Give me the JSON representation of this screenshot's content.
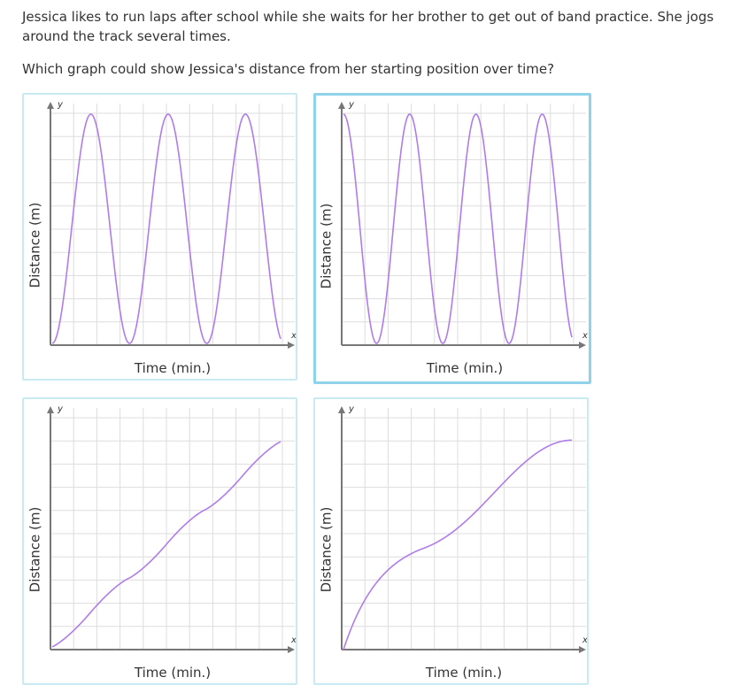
{
  "question": {
    "text": "Jessica likes to run laps after school while she waits for her brother to get out of band practice. She jogs around the track several times.",
    "prompt": "Which graph could show Jessica's distance from her starting position over time?"
  },
  "choices": [
    {
      "id": "a",
      "selected": false,
      "curve": "oscillating-start-zero",
      "chart_data": {
        "type": "line",
        "xlabel": "Time (min.)",
        "ylabel": "Distance (m)",
        "x_axis_letter": "x",
        "y_axis_letter": "y"
      }
    },
    {
      "id": "b",
      "selected": true,
      "curve": "oscillating-start-high",
      "chart_data": {
        "type": "line",
        "xlabel": "Time (min.)",
        "ylabel": "Distance (m)",
        "x_axis_letter": "x",
        "y_axis_letter": "y"
      }
    },
    {
      "id": "c",
      "selected": false,
      "curve": "stepped-increasing",
      "chart_data": {
        "type": "line",
        "xlabel": "Time (min.)",
        "ylabel": "Distance (m)",
        "x_axis_letter": "x",
        "y_axis_letter": "y"
      }
    },
    {
      "id": "d",
      "selected": false,
      "curve": "concave-increasing",
      "chart_data": {
        "type": "line",
        "xlabel": "Time (min.)",
        "ylabel": "Distance (m)",
        "x_axis_letter": "x",
        "y_axis_letter": "y"
      }
    }
  ],
  "colors": {
    "curve": "#b07ce8",
    "grid": "#dddddd",
    "axis": "#777777",
    "card_border": "#c8eaf3",
    "selected_border": "#8fd3ea"
  }
}
